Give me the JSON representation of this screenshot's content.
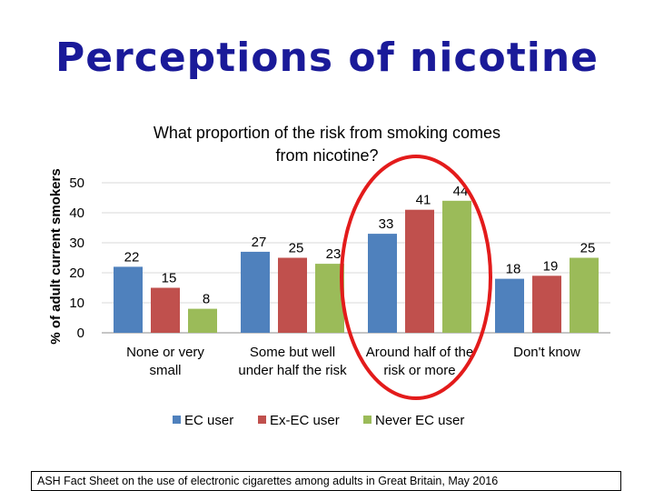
{
  "slide_title": "Perceptions of nicotine",
  "footnote": "ASH Fact Sheet on the use of electronic cigarettes among adults in Great Britain, May 2016",
  "chart_data": {
    "type": "bar",
    "title": "What proportion of the risk from smoking comes from nicotine?",
    "title_lines": [
      "What proportion of the risk from smoking comes",
      "from nicotine?"
    ],
    "ylabel": "% of adult current smokers",
    "xlabel": "",
    "ylim": [
      0,
      50
    ],
    "yticks": [
      0,
      10,
      20,
      30,
      40,
      50
    ],
    "grid": true,
    "legend_position": "bottom",
    "categories": [
      [
        "None or very",
        "small"
      ],
      [
        "Some but well",
        "under half the risk"
      ],
      [
        "Around half of the",
        "risk or more"
      ],
      [
        "Don't know"
      ]
    ],
    "series": [
      {
        "name": "EC user",
        "color": "#4f81bd",
        "values": [
          22,
          27,
          33,
          18
        ]
      },
      {
        "name": "Ex-EC user",
        "color": "#c0504d",
        "values": [
          15,
          25,
          41,
          19
        ]
      },
      {
        "name": "Never EC user",
        "color": "#9bbb59",
        "values": [
          8,
          23,
          44,
          25
        ]
      }
    ],
    "annotation": {
      "shape": "ellipse",
      "color": "#e31b1b",
      "highlights_category": "Around half of the risk or more"
    }
  }
}
